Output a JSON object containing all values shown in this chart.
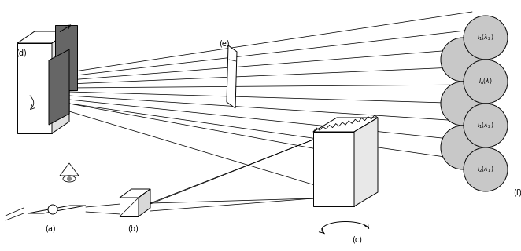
{
  "bg_color": "#ffffff",
  "line_color": "#000000",
  "gray_dark": "#666666",
  "gray_light": "#c8c8c8",
  "labels": {
    "a": "(a)",
    "b": "(b)",
    "c": "(c)",
    "d": "(d)",
    "e": "(e)",
    "f": "(f)"
  },
  "figsize": [
    6.62,
    3.2
  ],
  "dpi": 100
}
